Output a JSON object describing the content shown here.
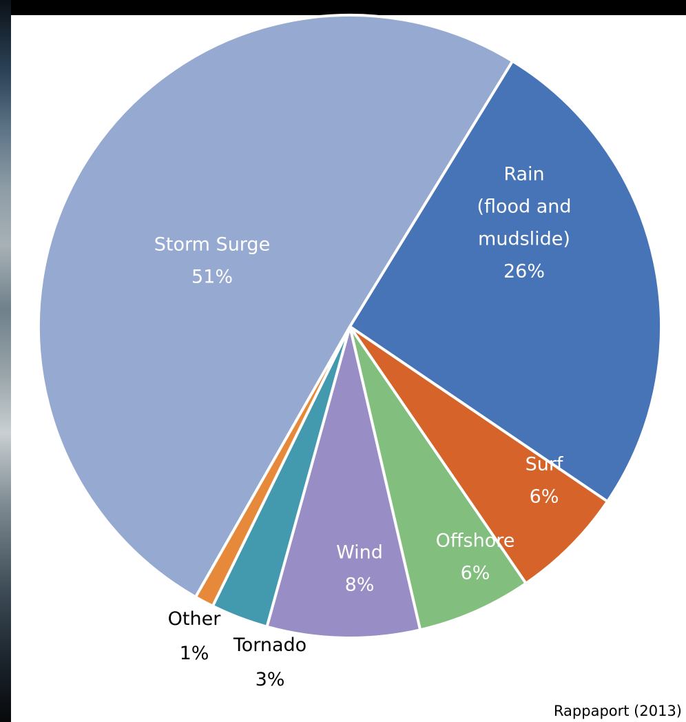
{
  "chart_data": {
    "type": "pie",
    "title": "",
    "slices": [
      {
        "name": "Rain",
        "name_lines": [
          "Rain",
          "(flood and",
          "mudslide)"
        ],
        "label": "26%",
        "value": 26,
        "color": "#4674B6",
        "text_color": "#ffffff"
      },
      {
        "name": "Surf",
        "name_lines": [
          "Surf"
        ],
        "label": "6%",
        "value": 6,
        "color": "#D6632A",
        "text_color": "#ffffff"
      },
      {
        "name": "Offshore",
        "name_lines": [
          "Offshore"
        ],
        "label": "6%",
        "value": 6,
        "color": "#82BE7E",
        "text_color": "#ffffff"
      },
      {
        "name": "Wind",
        "name_lines": [
          "Wind"
        ],
        "label": "8%",
        "value": 8,
        "color": "#988DC4",
        "text_color": "#ffffff"
      },
      {
        "name": "Tornado",
        "name_lines": [
          "Tornado"
        ],
        "label": "3%",
        "value": 3,
        "color": "#4399AE",
        "text_color": "#000000"
      },
      {
        "name": "Other",
        "name_lines": [
          "Other"
        ],
        "label": "1%",
        "value": 1,
        "color": "#E6893A",
        "text_color": "#000000"
      },
      {
        "name": "Storm Surge",
        "name_lines": [
          "Storm Surge"
        ],
        "label": "51%",
        "value": 51,
        "color": "#95A9D1",
        "text_color": "#ffffff"
      }
    ],
    "legend": "none",
    "source": "Rappaport (2013)"
  }
}
